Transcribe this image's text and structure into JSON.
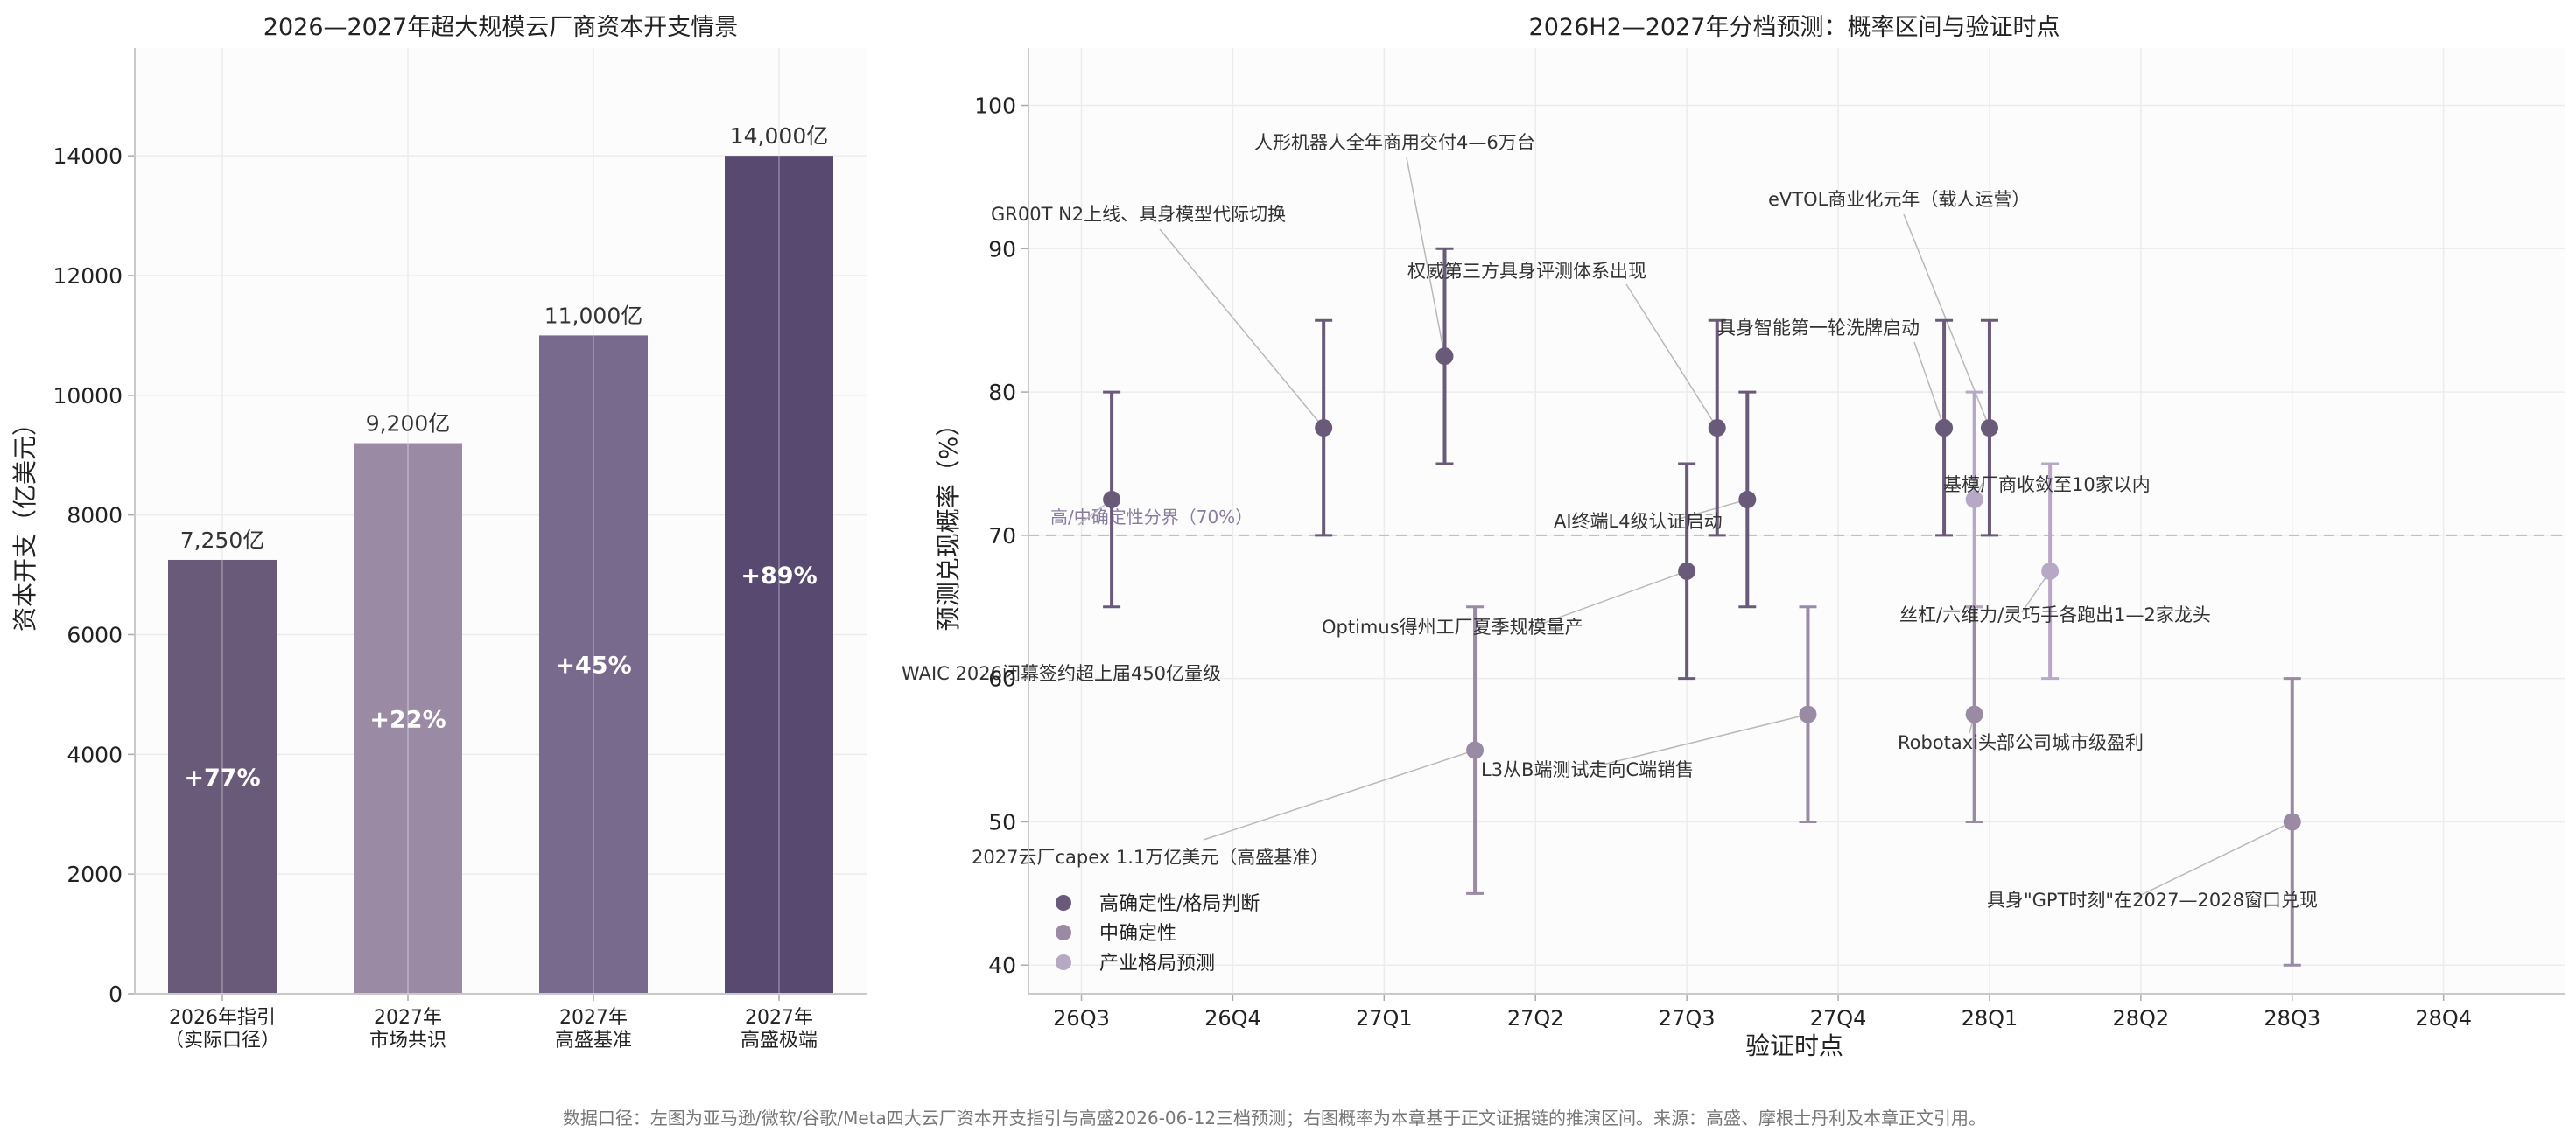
{
  "chart_data": [
    {
      "type": "bar",
      "title": "2026—2027年超大规模云厂商资本开支情景",
      "xlabel": "",
      "ylabel": "资本开支（亿美元）",
      "ylim": [
        0,
        15800
      ],
      "yticks": [
        0,
        2000,
        4000,
        6000,
        8000,
        10000,
        12000,
        14000
      ],
      "grid": true,
      "categories": [
        [
          "2026年指引",
          "（实际口径）"
        ],
        [
          "2027年",
          "市场共识"
        ],
        [
          "2027年",
          "高盛基准"
        ],
        [
          "2027年",
          "高盛极端"
        ]
      ],
      "values": [
        7250,
        9200,
        11000,
        14000
      ],
      "value_labels": [
        "7,250亿",
        "9,200亿",
        "11,000亿",
        "14,000亿"
      ],
      "inner_labels": [
        "+77%",
        "+22%",
        "+45%",
        "+89%"
      ],
      "colors": [
        "#6a5a7a",
        "#9a8aa4",
        "#786a8c",
        "#574970"
      ]
    },
    {
      "type": "errorbar",
      "title": "2026H2—2027年分档预测：概率区间与验证时点",
      "xlabel": "验证时点",
      "ylabel": "预测兑现概率（%）",
      "xticks": [
        "26Q3",
        "26Q4",
        "27Q1",
        "27Q2",
        "27Q3",
        "27Q4",
        "28Q1",
        "28Q2",
        "28Q3",
        "28Q4"
      ],
      "xlim": [
        -0.35,
        9.8
      ],
      "ylim": [
        38,
        104
      ],
      "yticks": [
        40,
        50,
        60,
        70,
        80,
        90,
        100
      ],
      "grid": true,
      "threshold": {
        "value": 70,
        "label": "高/中确定性分界（70%）"
      },
      "legend": {
        "position": "lower-left",
        "items": [
          {
            "name": "高确定性/格局判断",
            "color": "#6a5a7a"
          },
          {
            "name": "中确定性",
            "color": "#9a8aa4"
          },
          {
            "name": "产业格局预测",
            "color": "#b7a8c6"
          }
        ]
      },
      "points": [
        {
          "x": 0.2,
          "y": 72.5,
          "low": 65,
          "high": 80,
          "group": 0,
          "label": "WAIC 2026闭幕签约超上届450亿量级"
        },
        {
          "x": 1.6,
          "y": 77.5,
          "low": 70,
          "high": 85,
          "group": 0,
          "label": "GR00T N2上线、具身模型代际切换"
        },
        {
          "x": 2.4,
          "y": 82.5,
          "low": 75,
          "high": 90,
          "group": 0,
          "label": "人形机器人全年商用交付4—6万台"
        },
        {
          "x": 2.6,
          "y": 55,
          "low": 45,
          "high": 65,
          "group": 1,
          "label": "2027云厂capex 1.1万亿美元（高盛基准）"
        },
        {
          "x": 4.0,
          "y": 67.5,
          "low": 60,
          "high": 75,
          "group": 0,
          "label": "Optimus得州工厂夏季规模量产"
        },
        {
          "x": 4.2,
          "y": 77.5,
          "low": 70,
          "high": 85,
          "group": 0,
          "label": "权威第三方具身评测体系出现"
        },
        {
          "x": 4.4,
          "y": 72.5,
          "low": 65,
          "high": 80,
          "group": 0,
          "label": "AI终端L4级认证启动"
        },
        {
          "x": 4.8,
          "y": 57.5,
          "low": 50,
          "high": 65,
          "group": 1,
          "label": "L3从B端测试走向C端销售"
        },
        {
          "x": 5.7,
          "y": 77.5,
          "low": 70,
          "high": 85,
          "group": 0,
          "label": "具身智能第一轮洗牌启动"
        },
        {
          "x": 5.9,
          "y": 57.5,
          "low": 50,
          "high": 65,
          "group": 1,
          "label": "Robotaxi头部公司城市级盈利"
        },
        {
          "x": 5.9,
          "y": 72.5,
          "low": 65,
          "high": 80,
          "group": 2,
          "label": "基模厂商收敛至10家以内"
        },
        {
          "x": 6.0,
          "y": 77.5,
          "low": 70,
          "high": 85,
          "group": 0,
          "label": "eVTOL商业化元年（载人运营）"
        },
        {
          "x": 6.4,
          "y": 67.5,
          "low": 60,
          "high": 75,
          "group": 2,
          "label": "丝杠/六维力/灵巧手各跑出1—2家龙头"
        },
        {
          "x": 8.0,
          "y": 50,
          "low": 40,
          "high": 60,
          "group": 1,
          "label": "具身\"GPT时刻\"在2027—2028窗口兑现"
        }
      ]
    }
  ],
  "footer": "数据口径：左图为亚马逊/微软/谷歌/Meta四大云厂资本开支指引与高盛2026-06-12三档预测；右图概率为本章基于正文证据链的推演区间。来源：高盛、摩根士丹利及本章正文引用。"
}
